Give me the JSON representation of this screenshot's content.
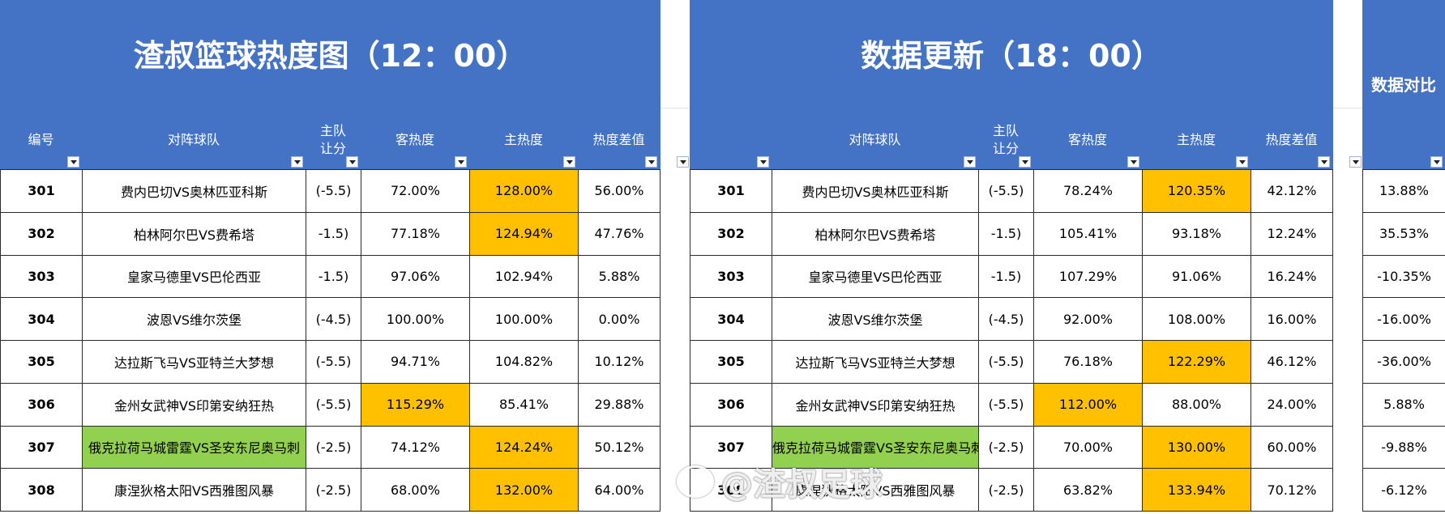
{
  "left_panel": {
    "title": "渣叔篮球热度图（12：00）",
    "headers": [
      "编号",
      "对阵球队",
      "主队\n让分",
      "客热度",
      "主热度",
      "热度差值"
    ],
    "rows": [
      {
        "id": "301",
        "teams": "费内巴切VS奥林匹亚科斯",
        "handicap": "(-5.5)",
        "away": "72.00%",
        "home": "128.00%",
        "diff": "56.00%",
        "hl_away": false,
        "hl_home": true,
        "hl_teams": false
      },
      {
        "id": "302",
        "teams": "柏林阿尔巴VS费希塔",
        "handicap": "-1.5)",
        "away": "77.18%",
        "home": "124.94%",
        "diff": "47.76%",
        "hl_away": false,
        "hl_home": true,
        "hl_teams": false
      },
      {
        "id": "303",
        "teams": "皇家马德里VS巴伦西亚",
        "handicap": "-1.5)",
        "away": "97.06%",
        "home": "102.94%",
        "diff": "5.88%",
        "hl_away": false,
        "hl_home": false,
        "hl_teams": false
      },
      {
        "id": "304",
        "teams": "波恩VS维尔茨堡",
        "handicap": "(-4.5)",
        "away": "100.00%",
        "home": "100.00%",
        "diff": "0.00%",
        "hl_away": false,
        "hl_home": false,
        "hl_teams": false
      },
      {
        "id": "305",
        "teams": "达拉斯飞马VS亚特兰大梦想",
        "handicap": "(-5.5)",
        "away": "94.71%",
        "home": "104.82%",
        "diff": "10.12%",
        "hl_away": false,
        "hl_home": false,
        "hl_teams": false
      },
      {
        "id": "306",
        "teams": "金州女武神VS印第安纳狂热",
        "handicap": "(-5.5)",
        "away": "115.29%",
        "home": "85.41%",
        "diff": "29.88%",
        "hl_away": true,
        "hl_home": false,
        "hl_teams": false
      },
      {
        "id": "307",
        "teams": "俄克拉荷马城雷霆VS圣安东尼奥马刺",
        "handicap": "(-2.5)",
        "away": "74.12%",
        "home": "124.24%",
        "diff": "50.12%",
        "hl_away": false,
        "hl_home": true,
        "hl_teams": true
      },
      {
        "id": "308",
        "teams": "康涅狄格太阳VS西雅图风暴",
        "handicap": "(-2.5)",
        "away": "68.00%",
        "home": "132.00%",
        "diff": "64.00%",
        "hl_away": false,
        "hl_home": true,
        "hl_teams": false
      }
    ]
  },
  "right_panel": {
    "title": "数据更新（18：00）",
    "headers": [
      "",
      "对阵球队",
      "主队\n让分",
      "客热度",
      "主热度",
      "热度差值"
    ],
    "rows": [
      {
        "id": "301",
        "teams": "费内巴切VS奥林匹亚科斯",
        "handicap": "(-5.5)",
        "away": "78.24%",
        "home": "120.35%",
        "diff": "42.12%",
        "hl_away": false,
        "hl_home": true,
        "hl_teams": false
      },
      {
        "id": "302",
        "teams": "柏林阿尔巴VS费希塔",
        "handicap": "-1.5)",
        "away": "105.41%",
        "home": "93.18%",
        "diff": "12.24%",
        "hl_away": false,
        "hl_home": false,
        "hl_teams": false
      },
      {
        "id": "303",
        "teams": "皇家马德里VS巴伦西亚",
        "handicap": "-1.5)",
        "away": "107.29%",
        "home": "91.06%",
        "diff": "16.24%",
        "hl_away": false,
        "hl_home": false,
        "hl_teams": false
      },
      {
        "id": "304",
        "teams": "波恩VS维尔茨堡",
        "handicap": "(-4.5)",
        "away": "92.00%",
        "home": "108.00%",
        "diff": "16.00%",
        "hl_away": false,
        "hl_home": false,
        "hl_teams": false
      },
      {
        "id": "305",
        "teams": "达拉斯飞马VS亚特兰大梦想",
        "handicap": "(-5.5)",
        "away": "76.18%",
        "home": "122.29%",
        "diff": "46.12%",
        "hl_away": false,
        "hl_home": true,
        "hl_teams": false
      },
      {
        "id": "306",
        "teams": "金州女武神VS印第安纳狂热",
        "handicap": "(-5.5)",
        "away": "112.00%",
        "home": "88.00%",
        "diff": "24.00%",
        "hl_away": true,
        "hl_home": false,
        "hl_teams": false
      },
      {
        "id": "307",
        "teams": "俄克拉荷马城雷霆VS圣安东尼奥马刺",
        "handicap": "(-2.5)",
        "away": "70.00%",
        "home": "130.00%",
        "diff": "60.00%",
        "hl_away": false,
        "hl_home": true,
        "hl_teams": true
      },
      {
        "id": "308",
        "teams": "康涅狄格太阳VS西雅图风暴",
        "handicap": "(-2.5)",
        "away": "63.82%",
        "home": "133.94%",
        "diff": "70.12%",
        "hl_away": false,
        "hl_home": true,
        "hl_teams": false
      }
    ]
  },
  "compare": {
    "title": "数据对比",
    "values": [
      "13.88%",
      "35.53%",
      "-10.35%",
      "-16.00%",
      "-36.00%",
      "5.88%",
      "-9.88%",
      "-6.12%"
    ]
  },
  "watermark": {
    "text": "@渣叔足球"
  },
  "colors": {
    "header": "#4472c4",
    "highlight_orange": "#ffc000",
    "highlight_green": "#92d050"
  }
}
